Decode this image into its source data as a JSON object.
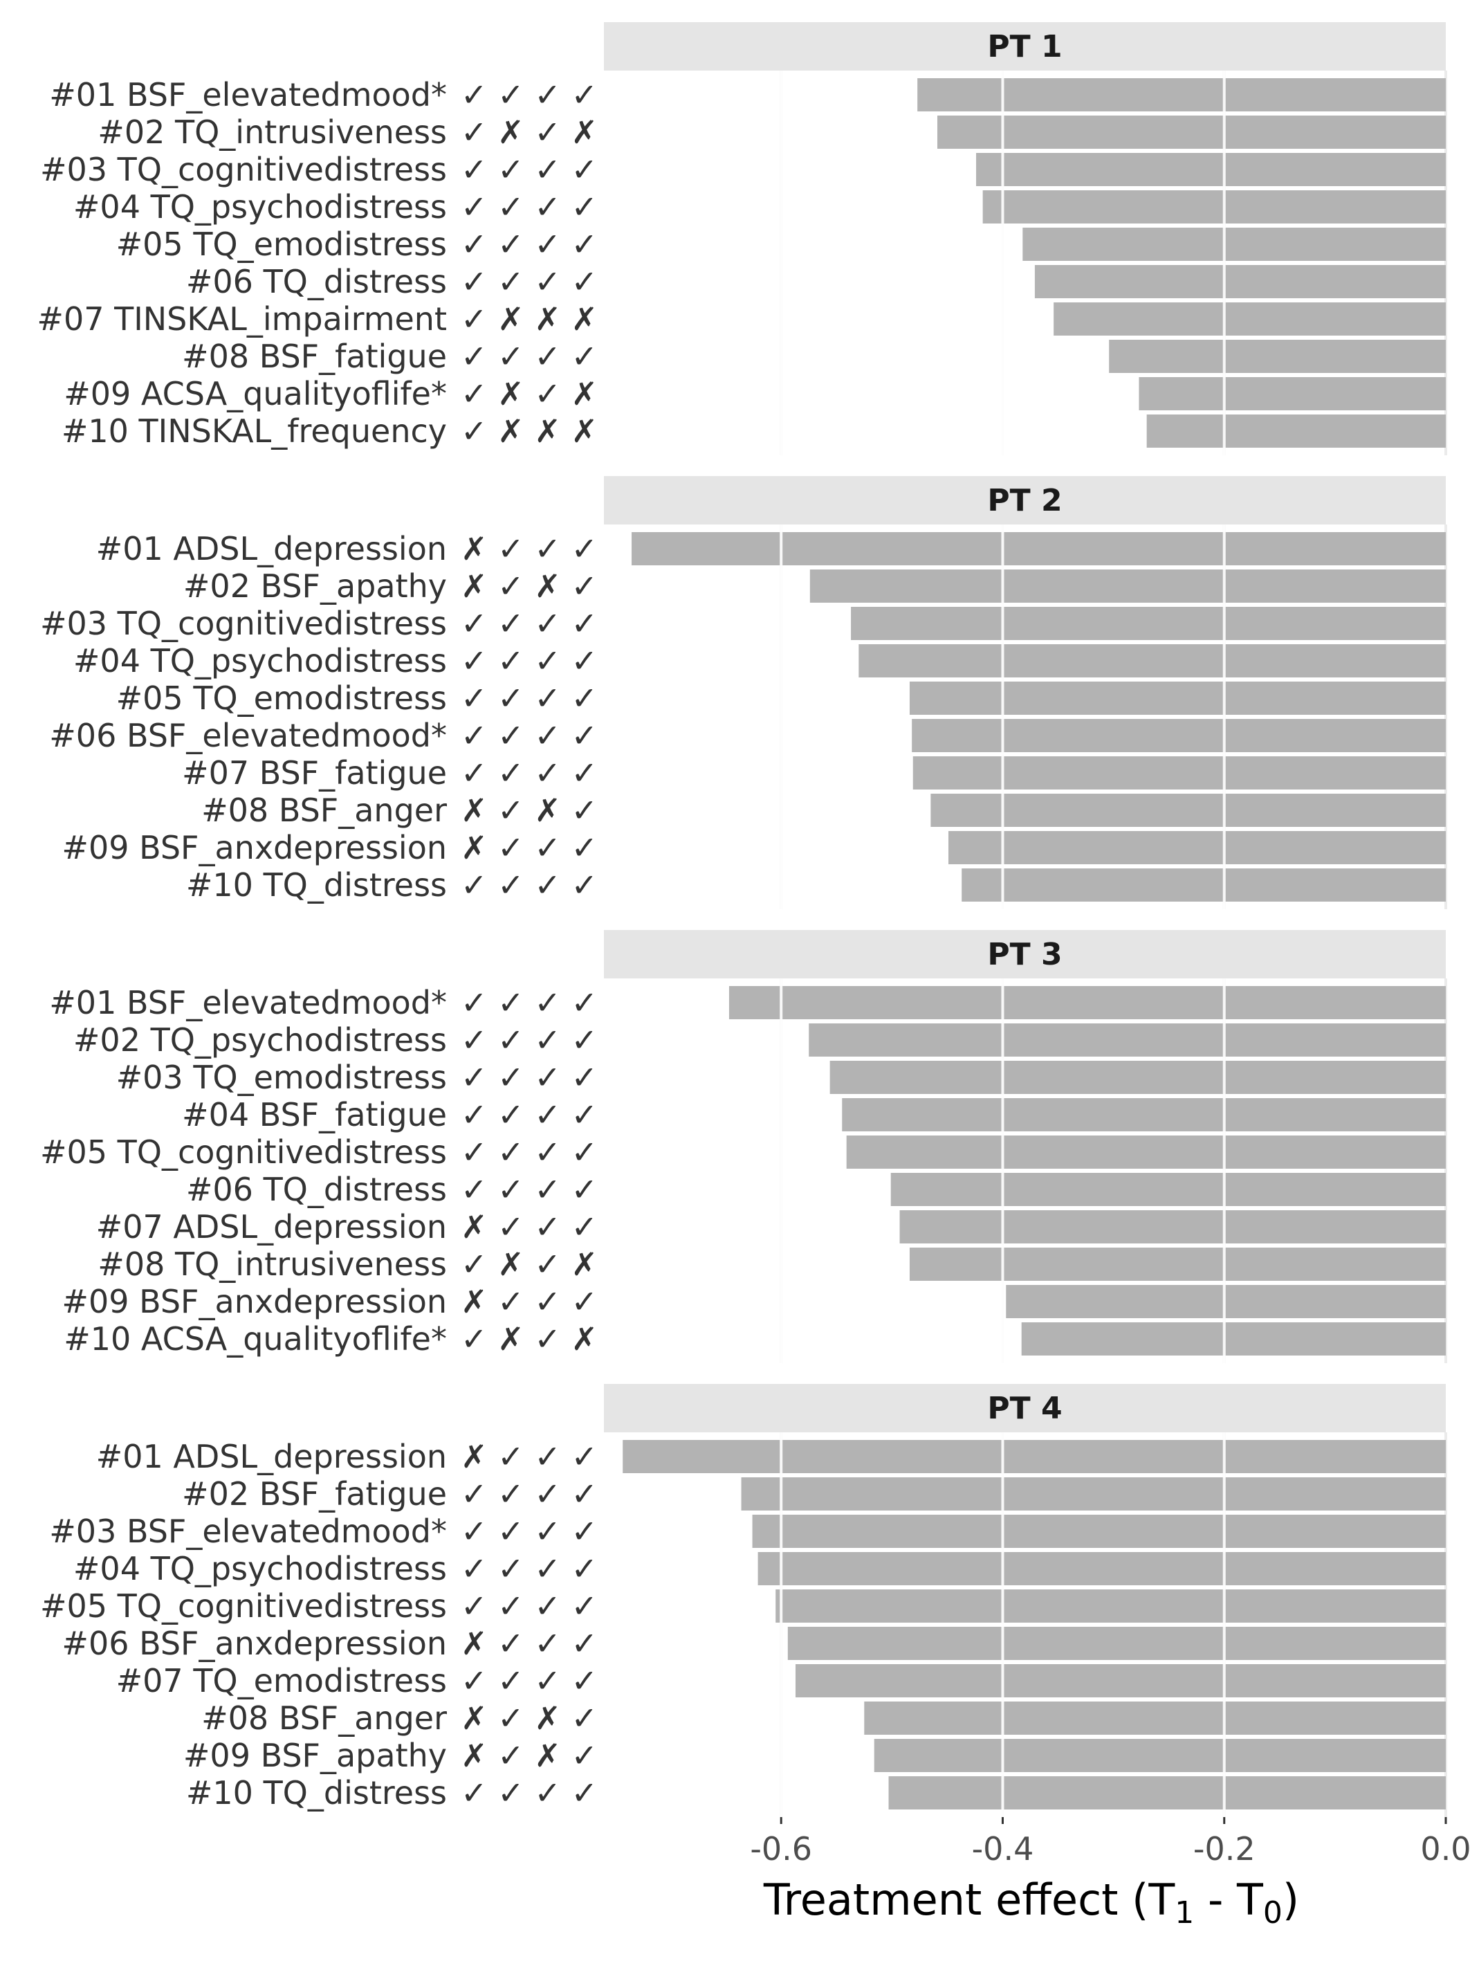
{
  "chart_data": {
    "type": "bar",
    "orientation": "horizontal",
    "facet_by": "panel",
    "xlabel_parts": [
      "Treatment effect (T",
      "1",
      " - T",
      "0",
      ")"
    ],
    "xlim": [
      -0.76,
      0.0
    ],
    "xticks": [
      -0.6,
      -0.4,
      -0.2,
      0.0
    ],
    "xtick_labels": [
      "-0.6",
      "-0.4",
      "-0.2",
      "0.0"
    ],
    "grid": true,
    "bar_color": "#b3b3b3",
    "strip_color": "#e5e5e5",
    "panels": [
      {
        "title": "PT 1",
        "items": [
          {
            "label": "#01 BSF_elevatedmood*",
            "marks": "✓ ✓ ✓ ✓",
            "value": -0.477
          },
          {
            "label": "#02 TQ_intrusiveness",
            "marks": "✓ ✗ ✓ ✗",
            "value": -0.459
          },
          {
            "label": "#03 TQ_cognitivedistress",
            "marks": "✓ ✓ ✓ ✓",
            "value": -0.424
          },
          {
            "label": "#04 TQ_psychodistress",
            "marks": "✓ ✓ ✓ ✓",
            "value": -0.418
          },
          {
            "label": "#05 TQ_emodistress",
            "marks": "✓ ✓ ✓ ✓",
            "value": -0.382
          },
          {
            "label": "#06 TQ_distress",
            "marks": "✓ ✓ ✓ ✓",
            "value": -0.371
          },
          {
            "label": "#07 TINSKAL_impairment",
            "marks": "✓ ✗ ✗ ✗",
            "value": -0.354
          },
          {
            "label": "#08 BSF_fatigue",
            "marks": "✓ ✓ ✓ ✓",
            "value": -0.304
          },
          {
            "label": "#09 ACSA_qualityoflife*",
            "marks": "✓ ✗ ✓ ✗",
            "value": -0.277
          },
          {
            "label": "#10 TINSKAL_frequency",
            "marks": "✓ ✗ ✗ ✗",
            "value": -0.27
          }
        ]
      },
      {
        "title": "PT 2",
        "items": [
          {
            "label": "#01 ADSL_depression",
            "marks": "✗ ✓ ✓ ✓",
            "value": -0.735
          },
          {
            "label": "#02 BSF_apathy",
            "marks": "✗ ✓ ✗ ✓",
            "value": -0.574
          },
          {
            "label": "#03 TQ_cognitivedistress",
            "marks": "✓ ✓ ✓ ✓",
            "value": -0.537
          },
          {
            "label": "#04 TQ_psychodistress",
            "marks": "✓ ✓ ✓ ✓",
            "value": -0.53
          },
          {
            "label": "#05 TQ_emodistress",
            "marks": "✓ ✓ ✓ ✓",
            "value": -0.484
          },
          {
            "label": "#06 BSF_elevatedmood*",
            "marks": "✓ ✓ ✓ ✓",
            "value": -0.482
          },
          {
            "label": "#07 BSF_fatigue",
            "marks": "✓ ✓ ✓ ✓",
            "value": -0.481
          },
          {
            "label": "#08 BSF_anger",
            "marks": "✗ ✓ ✗ ✓",
            "value": -0.465
          },
          {
            "label": "#09 BSF_anxdepression",
            "marks": "✗ ✓ ✓ ✓",
            "value": -0.449
          },
          {
            "label": "#10 TQ_distress",
            "marks": "✓ ✓ ✓ ✓",
            "value": -0.437
          }
        ]
      },
      {
        "title": "PT 3",
        "items": [
          {
            "label": "#01 BSF_elevatedmood*",
            "marks": "✓ ✓ ✓ ✓",
            "value": -0.647
          },
          {
            "label": "#02 TQ_psychodistress",
            "marks": "✓ ✓ ✓ ✓",
            "value": -0.575
          },
          {
            "label": "#03 TQ_emodistress",
            "marks": "✓ ✓ ✓ ✓",
            "value": -0.556
          },
          {
            "label": "#04 BSF_fatigue",
            "marks": "✓ ✓ ✓ ✓",
            "value": -0.545
          },
          {
            "label": "#05 TQ_cognitivedistress",
            "marks": "✓ ✓ ✓ ✓",
            "value": -0.541
          },
          {
            "label": "#06 TQ_distress",
            "marks": "✓ ✓ ✓ ✓",
            "value": -0.501
          },
          {
            "label": "#07 ADSL_depression",
            "marks": "✗ ✓ ✓ ✓",
            "value": -0.493
          },
          {
            "label": "#08 TQ_intrusiveness",
            "marks": "✓ ✗ ✓ ✗",
            "value": -0.484
          },
          {
            "label": "#09 BSF_anxdepression",
            "marks": "✗ ✓ ✓ ✓",
            "value": -0.397
          },
          {
            "label": "#10 ACSA_qualityoflife*",
            "marks": "✓ ✗ ✓ ✗",
            "value": -0.383
          }
        ]
      },
      {
        "title": "PT 4",
        "items": [
          {
            "label": "#01 ADSL_depression",
            "marks": "✗ ✓ ✓ ✓",
            "value": -0.743
          },
          {
            "label": "#02 BSF_fatigue",
            "marks": "✓ ✓ ✓ ✓",
            "value": -0.636
          },
          {
            "label": "#03 BSF_elevatedmood*",
            "marks": "✓ ✓ ✓ ✓",
            "value": -0.626
          },
          {
            "label": "#04 TQ_psychodistress",
            "marks": "✓ ✓ ✓ ✓",
            "value": -0.621
          },
          {
            "label": "#05 TQ_cognitivedistress",
            "marks": "✓ ✓ ✓ ✓",
            "value": -0.605
          },
          {
            "label": "#06 BSF_anxdepression",
            "marks": "✗ ✓ ✓ ✓",
            "value": -0.594
          },
          {
            "label": "#07 TQ_emodistress",
            "marks": "✓ ✓ ✓ ✓",
            "value": -0.587
          },
          {
            "label": "#08 BSF_anger",
            "marks": "✗ ✓ ✗ ✓",
            "value": -0.525
          },
          {
            "label": "#09 BSF_apathy",
            "marks": "✗ ✓ ✗ ✓",
            "value": -0.516
          },
          {
            "label": "#10 TQ_distress",
            "marks": "✓ ✓ ✓ ✓",
            "value": -0.503
          }
        ]
      }
    ]
  }
}
